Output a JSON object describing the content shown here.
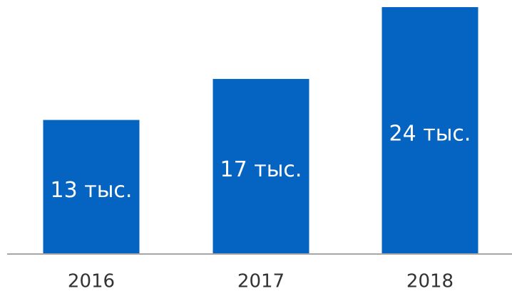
{
  "chart_data": {
    "type": "bar",
    "categories": [
      "2016",
      "2017",
      "2018"
    ],
    "values": [
      13,
      17,
      24
    ],
    "value_labels": [
      "13 тыс.",
      "17 тыс.",
      "24 тыс."
    ],
    "color": "#0563c1"
  }
}
